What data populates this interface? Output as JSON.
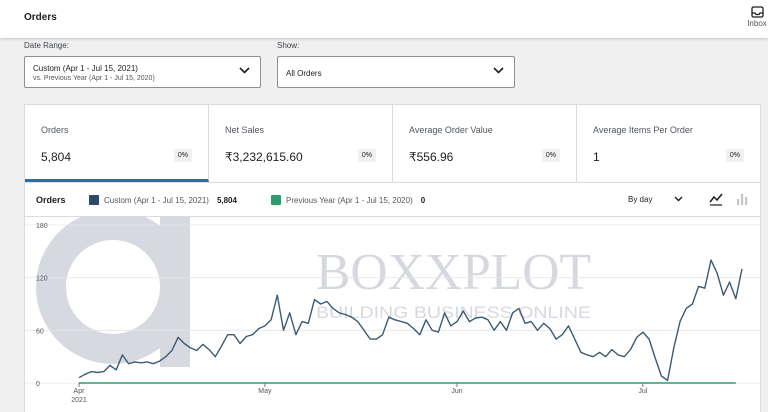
{
  "header": {
    "title": "Orders",
    "inbox_label": "Inbox"
  },
  "filters": {
    "date_range_label": "Date Range:",
    "date_range_value": "Custom (Apr 1 - Jul 15, 2021)",
    "date_range_compare": "vs. Previous Year (Apr 1 - Jul 15, 2020)",
    "show_label": "Show:",
    "show_value": "All Orders"
  },
  "summary": [
    {
      "label": "Orders",
      "value": "5,804",
      "delta": "0%"
    },
    {
      "label": "Net Sales",
      "value": "₹3,232,615.60",
      "delta": "0%"
    },
    {
      "label": "Average Order Value",
      "value": "₹556.96",
      "delta": "0%"
    },
    {
      "label": "Average Items Per Order",
      "value": "1",
      "delta": "0%"
    }
  ],
  "chart_panel": {
    "title": "Orders",
    "legend": [
      {
        "name": "Custom (Apr 1 - Jul 15, 2021)",
        "count": "5,804",
        "color": "#2c4a6b"
      },
      {
        "name": "Previous Year (Apr 1 - Jul 15, 2020)",
        "count": "0",
        "color": "#2a9d6e"
      }
    ],
    "interval": "By day"
  },
  "chart_data": {
    "type": "line",
    "ylim": [
      0,
      180
    ],
    "yticks": [
      "0",
      "60",
      "120",
      "180"
    ],
    "xticks": [
      {
        "label": "Apr",
        "sublabel": "2021",
        "day": 0
      },
      {
        "label": "May",
        "day": 30
      },
      {
        "label": "Jun",
        "day": 61
      },
      {
        "label": "Jul",
        "day": 91
      }
    ],
    "series": [
      {
        "name": "Custom (Apr 1 - Jul 15, 2021)",
        "color": "#3d5a73",
        "values": [
          6,
          10,
          13,
          12,
          13,
          20,
          15,
          32,
          22,
          24,
          23,
          24,
          22,
          25,
          30,
          37,
          52,
          45,
          40,
          37,
          44,
          38,
          30,
          42,
          55,
          55,
          45,
          53,
          55,
          62,
          65,
          72,
          100,
          60,
          80,
          55,
          70,
          68,
          95,
          90,
          93,
          85,
          80,
          78,
          75,
          70,
          60,
          50,
          50,
          55,
          75,
          72,
          70,
          68,
          62,
          55,
          72,
          60,
          58,
          80,
          65,
          70,
          82,
          70,
          74,
          75,
          72,
          60,
          70,
          60,
          80,
          85,
          68,
          70,
          60,
          68,
          62,
          50,
          55,
          65,
          50,
          35,
          32,
          30,
          35,
          30,
          38,
          32,
          30,
          38,
          52,
          58,
          50,
          28,
          8,
          3,
          40,
          70,
          85,
          90,
          110,
          108,
          140,
          125,
          100,
          115,
          96,
          130
        ],
        "estimated": true
      },
      {
        "name": "Previous Year (Apr 1 - Jul 15, 2020)",
        "color": "#2a9d6e",
        "values": [
          0,
          0,
          0,
          0,
          0,
          0,
          0,
          0,
          0,
          0,
          0,
          0,
          0,
          0,
          0,
          0,
          0,
          0,
          0,
          0,
          0,
          0,
          0,
          0,
          0,
          0,
          0,
          0,
          0,
          0,
          0,
          0,
          0,
          0,
          0,
          0,
          0,
          0,
          0,
          0,
          0,
          0,
          0,
          0,
          0,
          0,
          0,
          0,
          0,
          0,
          0,
          0,
          0,
          0,
          0,
          0,
          0,
          0,
          0,
          0,
          0,
          0,
          0,
          0,
          0,
          0,
          0,
          0,
          0,
          0,
          0,
          0,
          0,
          0,
          0,
          0,
          0,
          0,
          0,
          0,
          0,
          0,
          0,
          0,
          0,
          0,
          0,
          0,
          0,
          0,
          0,
          0,
          0,
          0,
          0,
          0,
          0,
          0,
          0,
          0,
          0,
          0,
          0,
          0,
          0,
          0,
          0
        ]
      }
    ]
  },
  "watermark": {
    "brand": "BOXXPLOT",
    "tagline": "BUILDING BUSINESS ONLINE"
  },
  "colors": {
    "accent": "#2271b1",
    "current_series": "#3d5a73",
    "previous_series": "#2a9d6e"
  }
}
